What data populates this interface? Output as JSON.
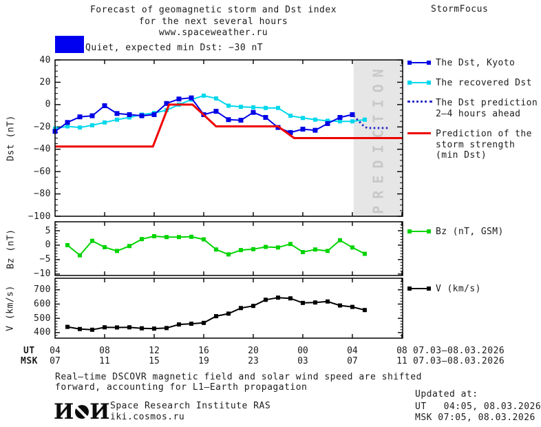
{
  "header": {
    "title_line1": "Forecast of geomagnetic storm and Dst index",
    "title_line2": "for the next several hours",
    "title_line3": "www.spaceweather.ru",
    "brand": "StormFocus"
  },
  "status": {
    "label": "Quiet, expected min Dst: −30 nT",
    "level_color": "#0000f0"
  },
  "xaxis": {
    "ut_row_label": "UT",
    "msk_row_label": "MSK",
    "tick_hours": [
      4,
      8,
      12,
      16,
      20,
      24,
      28,
      32
    ],
    "ut_hours": [
      "04",
      "08",
      "12",
      "16",
      "20",
      "00",
      "04",
      "08"
    ],
    "msk_hours": [
      "07",
      "11",
      "15",
      "19",
      "23",
      "03",
      "07",
      "11"
    ],
    "ut_date_range": "07.03–08.03.2026",
    "msk_date_range": "07.03–08.03.2026"
  },
  "chart_data": [
    {
      "id": "dst",
      "type": "line",
      "ylabel": "Dst (nT)",
      "ylim": [
        -100,
        40
      ],
      "yticks": [
        40,
        20,
        0,
        -20,
        -40,
        -60,
        -80,
        -100
      ],
      "y_minor_step": 5,
      "x_hours_range": [
        4,
        32.06
      ],
      "grid": false,
      "prediction_band": {
        "start_hour": 28.1,
        "label": "PREDICTION",
        "band_color": "#e6e6e6",
        "text_color": "#c8c8c8"
      },
      "series": [
        {
          "name": "recovered_dst",
          "color": "#00d8ec",
          "width": 2,
          "marker_size": 6,
          "legend": {
            "lines": [
              "The recovered Dst"
            ],
            "swatch": "line-squares",
            "slot": 1
          },
          "x": [
            4,
            5,
            6,
            7,
            8,
            9,
            10,
            11,
            12,
            13,
            14,
            15,
            16,
            17,
            18,
            19,
            20,
            21,
            22,
            23,
            24,
            25,
            26,
            27,
            28,
            29
          ],
          "values": [
            -21.5,
            -19.5,
            -20.5,
            -18.5,
            -16,
            -13.5,
            -11.5,
            -9,
            -7.5,
            -5,
            0,
            4.5,
            8,
            5.5,
            -1,
            -2,
            -2.5,
            -3,
            -3,
            -10,
            -12,
            -13.5,
            -14.5,
            -15,
            -15,
            -13.5
          ]
        },
        {
          "name": "dst_kyoto",
          "color": "#0000e6",
          "width": 2,
          "marker_size": 7,
          "legend": {
            "lines": [
              "The Dst, Kyoto"
            ],
            "swatch": "line-squares",
            "slot": 0
          },
          "x": [
            4,
            5,
            6,
            7,
            8,
            9,
            10,
            11,
            12,
            13,
            14,
            15,
            16,
            17,
            18,
            19,
            20,
            21,
            22,
            23,
            24,
            25,
            26,
            27,
            28
          ],
          "values": [
            -24,
            -16,
            -11,
            -10,
            -1,
            -8,
            -9,
            -10,
            -9,
            1,
            5,
            6,
            -9,
            -6,
            -13.5,
            -14,
            -7,
            -11.5,
            -20.5,
            -25,
            -22,
            -23,
            -17,
            -11.5,
            -9
          ]
        },
        {
          "name": "dst_prediction_2_4h",
          "color": "#2a2ac8",
          "width": 3,
          "style": "dotted",
          "legend": {
            "lines": [
              "The Dst prediction",
              "2–4 hours ahead"
            ],
            "swatch": "dotted",
            "slot": 2
          },
          "x": [
            28.1,
            28.9,
            29.2,
            31.0
          ],
          "values": [
            -10,
            -19,
            -21,
            -21
          ]
        },
        {
          "name": "storm_strength_prediction",
          "color": "#ee0000",
          "width": 3,
          "legend": {
            "lines": [
              "Prediction of the",
              "storm strength",
              "(min Dst)"
            ],
            "swatch": "line",
            "slot": 3
          },
          "x": [
            4,
            11.9,
            13.2,
            15.1,
            17,
            22,
            23.3,
            32.06
          ],
          "values": [
            -37.5,
            -37.5,
            0,
            0,
            -19.5,
            -19.5,
            -30,
            -30
          ]
        }
      ]
    },
    {
      "id": "bz",
      "type": "line",
      "ylabel": "Bz (nT)",
      "ylim": [
        -10.5,
        8.1
      ],
      "yticks": [
        5,
        0,
        -5,
        -10
      ],
      "y_minor_step": 1,
      "x_hours_range": [
        4,
        32.06
      ],
      "grid": false,
      "series": [
        {
          "name": "bz_gsm",
          "color": "#00d400",
          "width": 2,
          "marker_size": 6,
          "legend": {
            "lines": [
              "Bz (nT, GSM)"
            ],
            "swatch": "line-squares",
            "slot": 0
          },
          "x": [
            5,
            6,
            7,
            8,
            9,
            10,
            11,
            12,
            13,
            14,
            15,
            16,
            17,
            18,
            19,
            20,
            21,
            22,
            23,
            24,
            25,
            26,
            27,
            28,
            29
          ],
          "values": [
            0,
            -3.5,
            1.5,
            -0.7,
            -2,
            -0.3,
            2.1,
            3.1,
            2.8,
            2.8,
            2.9,
            2,
            -1.5,
            -3.2,
            -1.7,
            -1.4,
            -0.6,
            -0.8,
            0.4,
            -2.4,
            -1.5,
            -2,
            1.7,
            -0.8,
            -3
          ]
        }
      ]
    },
    {
      "id": "v",
      "type": "line",
      "ylabel": "V (km/s)",
      "ylim": [
        361,
        781
      ],
      "yticks": [
        700,
        600,
        500,
        400
      ],
      "y_minor_step": 20,
      "x_hours_range": [
        4,
        32.06
      ],
      "grid": false,
      "series": [
        {
          "name": "solar_wind_speed",
          "color": "#000000",
          "width": 2,
          "marker_size": 6,
          "legend": {
            "lines": [
              "V (km/s)"
            ],
            "swatch": "line-squares",
            "slot": 0
          },
          "x": [
            5,
            6,
            7,
            8,
            9,
            10,
            11,
            12,
            13,
            14,
            15,
            16,
            17,
            18,
            19,
            20,
            21,
            22,
            23,
            24,
            25,
            26,
            27,
            28,
            29
          ],
          "values": [
            440,
            425,
            420,
            437,
            436,
            437,
            430,
            428,
            432,
            457,
            462,
            468,
            515,
            533,
            572,
            587,
            630,
            645,
            640,
            608,
            611,
            618,
            590,
            580,
            558
          ]
        }
      ]
    }
  ],
  "footer": {
    "note_line1": "Real–time DSCOVR magnetic field and solar wind speed are shifted",
    "note_line2": "forward, accounting for L1–Earth propagation",
    "logo_text": "ИКИ",
    "institute_line1": "Space Research Institute RAS",
    "institute_line2": "iki.cosmos.ru",
    "updated_label": "Updated at:",
    "updated_ut": "UT   04:05, 08.03.2026",
    "updated_msk": "MSK 07:05, 08.03.2026"
  }
}
